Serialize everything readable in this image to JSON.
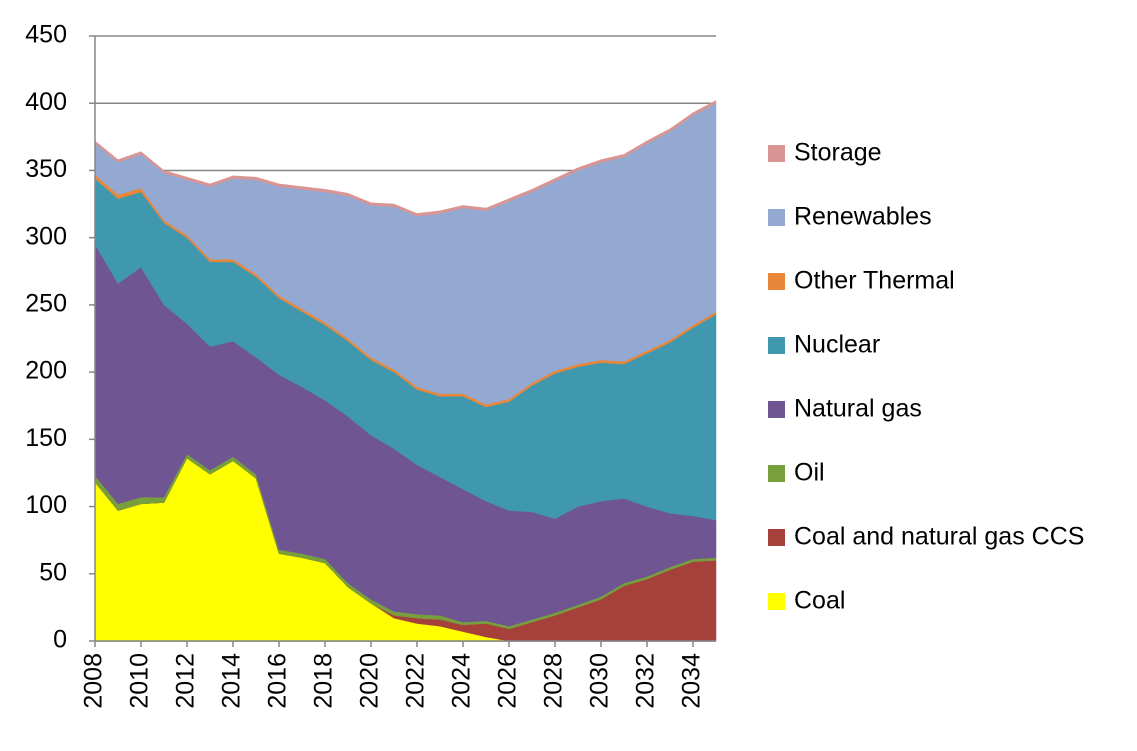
{
  "chart_data": {
    "type": "stacked_area",
    "x": [
      2008,
      2009,
      2010,
      2011,
      2012,
      2013,
      2014,
      2015,
      2016,
      2017,
      2018,
      2019,
      2020,
      2021,
      2022,
      2023,
      2024,
      2025,
      2026,
      2027,
      2028,
      2029,
      2030,
      2031,
      2032,
      2033,
      2034,
      2035
    ],
    "xlim": [
      2008,
      2035
    ],
    "xticks": [
      2008,
      2010,
      2012,
      2014,
      2016,
      2018,
      2020,
      2022,
      2024,
      2026,
      2028,
      2030,
      2032,
      2034
    ],
    "ylim": [
      0,
      450
    ],
    "yticks": [
      0,
      50,
      100,
      150,
      200,
      250,
      300,
      350,
      400,
      450
    ],
    "grid": true,
    "series": [
      {
        "name": "Coal",
        "color": "#ffff00",
        "values": [
          118,
          97,
          102,
          103,
          136,
          124,
          134,
          121,
          65,
          62,
          58,
          40,
          28,
          17,
          13,
          11,
          7,
          3,
          0,
          0,
          0,
          0,
          0,
          0,
          0,
          0,
          0,
          0
        ]
      },
      {
        "name": "Coal and natural gas CCS",
        "color": "#a5403a",
        "values": [
          0,
          0,
          0,
          0,
          0,
          0,
          0,
          0,
          0,
          0,
          0,
          0,
          0,
          2,
          4,
          5,
          5,
          10,
          9,
          14,
          19,
          25,
          31,
          41,
          46,
          53,
          59,
          60
        ]
      },
      {
        "name": "Oil",
        "color": "#77a03c",
        "values": [
          5,
          5,
          5,
          4,
          3,
          3,
          3,
          3,
          3,
          3,
          3,
          3,
          3,
          3,
          3,
          3,
          2,
          2,
          2,
          2,
          2,
          2,
          2,
          2,
          2,
          2,
          2,
          2
        ]
      },
      {
        "name": "Natural gas",
        "color": "#6f5592",
        "values": [
          172,
          164,
          171,
          143,
          97,
          92,
          86,
          87,
          130,
          124,
          118,
          124,
          122,
          121,
          111,
          103,
          99,
          89,
          86,
          80,
          70,
          73,
          71,
          63,
          52,
          40,
          32,
          28
        ]
      },
      {
        "name": "Nuclear",
        "color": "#3f98ae",
        "values": [
          49,
          63,
          56,
          61,
          64,
          63,
          59,
          60,
          57,
          56,
          56,
          56,
          56,
          57,
          56,
          60,
          69,
          70,
          81,
          94,
          108,
          104,
          103,
          100,
          114,
          127,
          140,
          153
        ]
      },
      {
        "name": "Other Thermal",
        "color": "#e8873a",
        "values": [
          3,
          3,
          3,
          2,
          2,
          2,
          2,
          2,
          2,
          2,
          2,
          2,
          2,
          2,
          2,
          2,
          2,
          2,
          2,
          2,
          2,
          2,
          2,
          2,
          2,
          2,
          2,
          2
        ]
      },
      {
        "name": "Renewables",
        "color": "#94a9d1",
        "values": [
          23,
          24,
          25,
          35,
          41,
          54,
          60,
          70,
          81,
          89,
          97,
          106,
          113,
          121,
          127,
          134,
          138,
          144,
          147,
          142,
          141,
          144,
          147,
          152,
          154,
          155,
          156,
          155
        ]
      },
      {
        "name": "Storage",
        "color": "#d99594",
        "values": [
          2,
          2,
          2,
          2,
          2,
          2,
          2,
          2,
          2,
          2,
          2,
          2,
          2,
          2,
          2,
          2,
          2,
          2,
          2,
          2,
          2,
          2,
          2,
          2,
          2,
          2,
          2,
          2
        ]
      }
    ]
  }
}
